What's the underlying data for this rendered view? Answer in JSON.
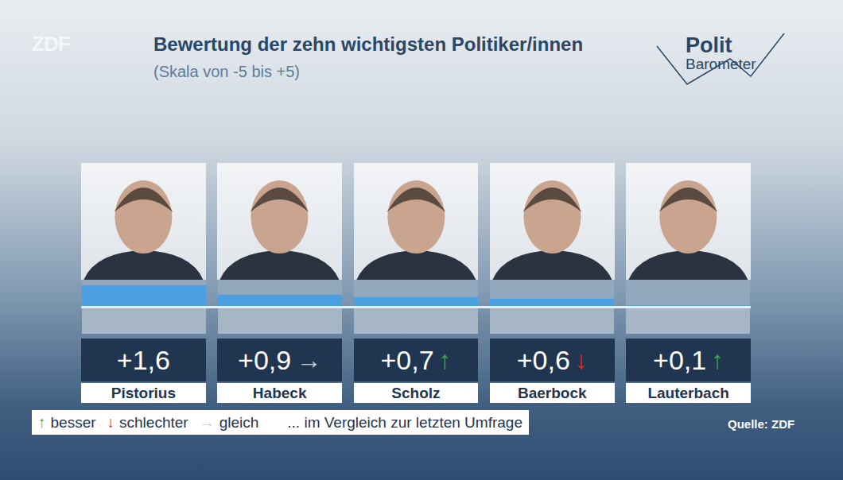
{
  "chart_data": {
    "type": "bar",
    "title": "Bewertung der zehn wichtigsten Politiker/innen",
    "subtitle": "(Skala von -5 bis +5)",
    "categories": [
      "Pistorius",
      "Habeck",
      "Scholz",
      "Baerbock",
      "Lauterbach"
    ],
    "values": [
      1.6,
      0.9,
      0.7,
      0.6,
      0.1
    ],
    "value_labels": [
      "+1,6",
      "+0,9",
      "+0,7",
      "+0,6",
      "+0,1"
    ],
    "trend": [
      null,
      "→",
      "↑",
      "↓",
      "↑"
    ],
    "trend_colors": [
      null,
      "#c4ccd4",
      "#3aa84a",
      "#d9302b",
      "#3aa84a"
    ],
    "color": "#4aa0e0",
    "ylim": [
      -2,
      2
    ],
    "yticks": [
      0
    ],
    "tick_labels": false,
    "data_labels": true,
    "legend": "bottom left",
    "trend_legend": {
      "items": [
        {
          "symbol": "↑",
          "label": "besser",
          "color": "#3aa84a"
        },
        {
          "symbol": "↓",
          "label": "schlechter",
          "color": "#d9302b"
        },
        {
          "symbol": "→",
          "label": "gleich",
          "color": "#c4ccd4"
        }
      ],
      "note": "... im Vergleich zur letzten Umfrage"
    },
    "source": "Quelle: ZDF",
    "logos": {
      "broadcaster": "ZDF",
      "program": [
        "Polit",
        "Barometer"
      ]
    }
  }
}
